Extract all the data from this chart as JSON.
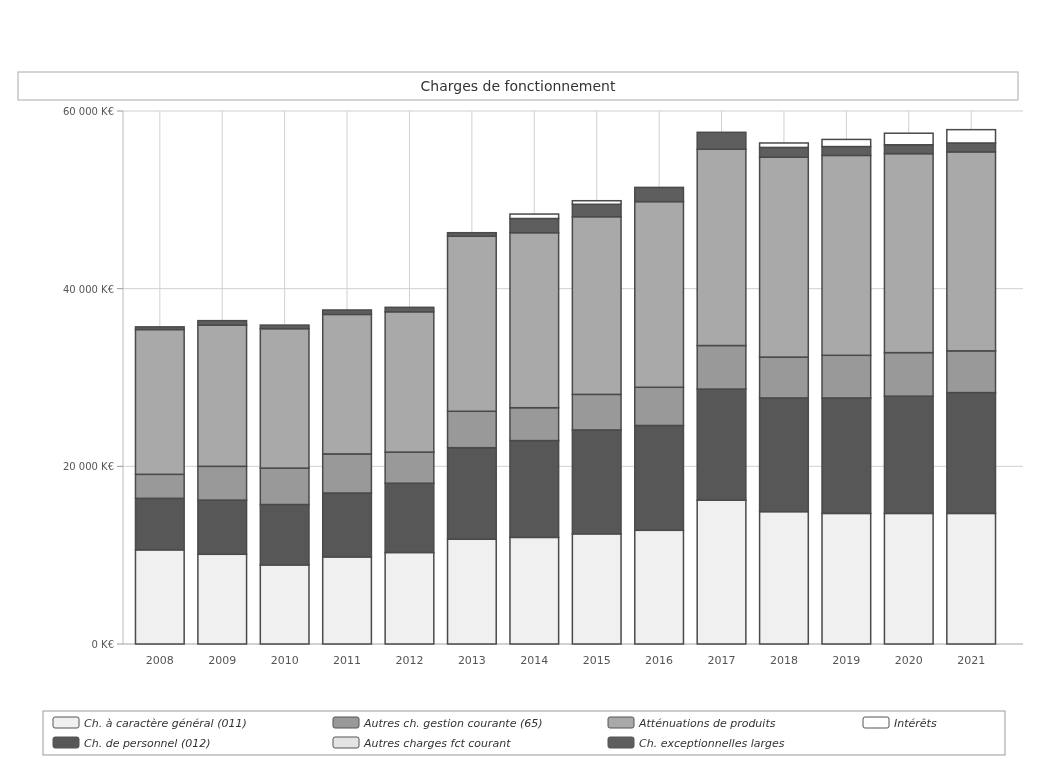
{
  "chart_data": {
    "type": "bar",
    "stacked": true,
    "title": "Charges de fonctionnement",
    "categories": [
      "2008",
      "2009",
      "2010",
      "2011",
      "2012",
      "2013",
      "2014",
      "2015",
      "2016",
      "2017",
      "2018",
      "2019",
      "2020",
      "2021"
    ],
    "series": [
      {
        "name": "Ch. à caractère général (011)",
        "color": "#f0f0f0",
        "values": [
          10600,
          10100,
          8900,
          9800,
          10300,
          11800,
          12000,
          12400,
          12800,
          16200,
          14900,
          14700,
          14700,
          14700
        ]
      },
      {
        "name": "Ch. de personnel (012)",
        "color": "#575757",
        "values": [
          5800,
          6100,
          6800,
          7200,
          7800,
          10300,
          10900,
          11700,
          11800,
          12500,
          12800,
          13000,
          13200,
          13600
        ]
      },
      {
        "name": "Autres ch. gestion courante (65)",
        "color": "#999999",
        "values": [
          2700,
          3800,
          4100,
          4400,
          3500,
          4100,
          3700,
          4000,
          4300,
          4900,
          4600,
          4800,
          4900,
          4700
        ]
      },
      {
        "name": "Autres charges fct courant",
        "color": "#e4e4e4",
        "values": [
          0,
          0,
          0,
          0,
          0,
          0,
          0,
          0,
          0,
          0,
          0,
          0,
          0,
          0
        ]
      },
      {
        "name": "Atténuations de produits",
        "color": "#a9a9a9",
        "values": [
          16300,
          15900,
          15700,
          15700,
          15800,
          19700,
          19700,
          20000,
          20900,
          22100,
          22500,
          22500,
          22400,
          22400
        ]
      },
      {
        "name": "Ch. exceptionnelles larges",
        "color": "#5e5e5e",
        "values": [
          300,
          500,
          400,
          500,
          500,
          400,
          1600,
          1400,
          1600,
          1900,
          1100,
          1000,
          1000,
          1000
        ]
      },
      {
        "name": "Intérêts",
        "color": "#ffffff",
        "values": [
          0,
          0,
          0,
          0,
          0,
          0,
          500,
          400,
          0,
          0,
          500,
          800,
          1300,
          1500
        ]
      }
    ],
    "ylim": [
      0,
      60000
    ],
    "yticks": [
      {
        "value": 0,
        "label": "0 K€"
      },
      {
        "value": 20000,
        "label": "20 000 K€"
      },
      {
        "value": 40000,
        "label": "40 000 K€"
      },
      {
        "value": 60000,
        "label": "60 000 K€"
      }
    ],
    "grid": true,
    "legend": "bottom"
  }
}
